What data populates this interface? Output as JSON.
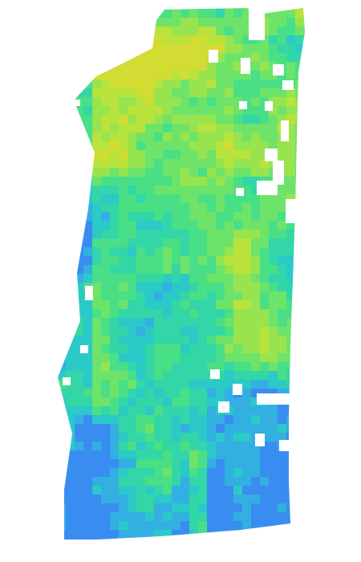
{
  "colors": {
    "background": "#ffffff",
    "palette": [
      "#3a8df0",
      "#32b0e2",
      "#2bc9c8",
      "#33d6a6",
      "#48df86",
      "#6ee36a",
      "#98e44f",
      "#b8e33c",
      "#d2dc32"
    ]
  }
}
